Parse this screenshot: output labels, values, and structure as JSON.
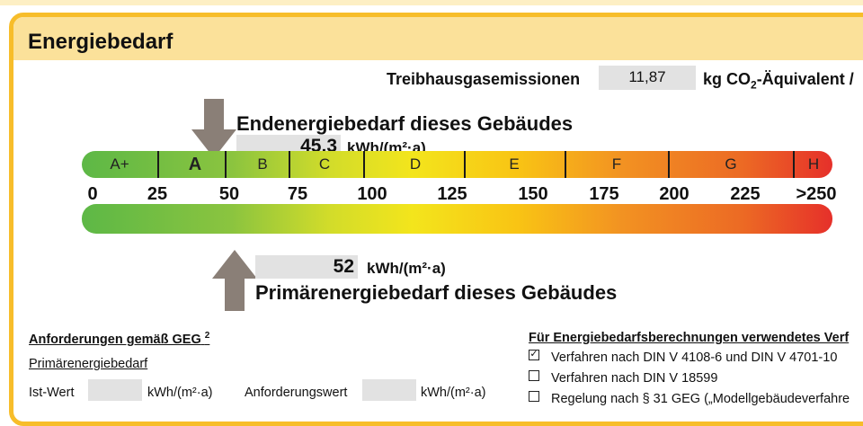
{
  "section_title": "Energiebedarf",
  "emissions": {
    "label": "Treibhausgasemissionen",
    "value": "11,87",
    "unit_pre": "kg CO",
    "unit_sub": "2",
    "unit_post": "-Äquivalent /"
  },
  "endenergie": {
    "title": "Endenergiebedarf dieses Gebäudes",
    "value": "45,3",
    "unit": "kWh/(m²·a)",
    "scale_value": 45.3
  },
  "primaerenergie": {
    "title": "Primärenergiebedarf dieses Gebäudes",
    "value": "52",
    "unit": "kWh/(m²·a)",
    "scale_value": 52
  },
  "scale": {
    "classes": [
      "A+",
      "A",
      "B",
      "C",
      "D",
      "E",
      "F",
      "G",
      "H"
    ],
    "highlighted_class": "A",
    "numbers": [
      "0",
      "25",
      "50",
      "75",
      "100",
      "125",
      "150",
      "175",
      "200",
      "225",
      ">250"
    ],
    "colors": [
      "#5db846",
      "#8bc43f",
      "#d2dc2a",
      "#f3e51c",
      "#f9c414",
      "#f29222",
      "#ec6a24",
      "#e6302a"
    ]
  },
  "requirements": {
    "heading": "Anforderungen gemäß GEG",
    "heading_sup": "2",
    "sub": "Primärenergiebedarf",
    "ist_label": "Ist-Wert",
    "ist_unit": "kWh/(m²·a)",
    "anf_label": "Anforderungswert",
    "anf_unit": "kWh/(m²·a)"
  },
  "methods": {
    "heading": "Für Energiebedarfsberechnungen verwendetes Verf",
    "items": [
      {
        "label": "Verfahren nach DIN V 4108-6 und DIN V 4701-10",
        "checked": true
      },
      {
        "label": "Verfahren nach DIN V 18599",
        "checked": false
      },
      {
        "label": "Regelung nach § 31 GEG („Modellgebäudeverfahre",
        "checked": false
      }
    ]
  }
}
